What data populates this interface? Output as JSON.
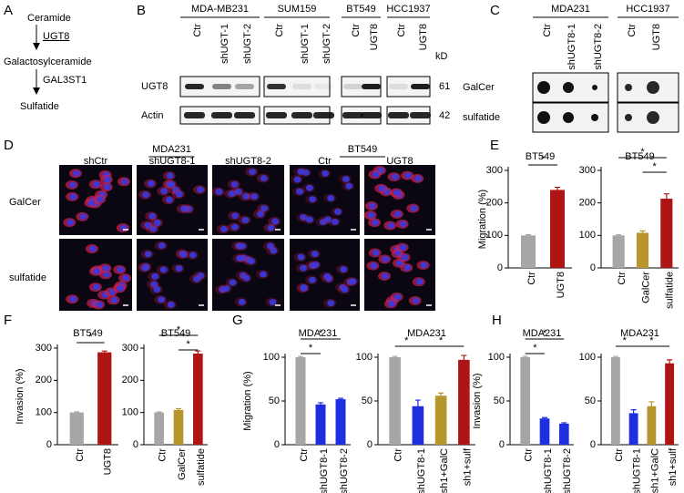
{
  "panels": {
    "A": {
      "letter": "A",
      "steps": [
        "Ceramide",
        "UGT8",
        "Galactosylceramide",
        "GAL3ST1",
        "Sulfatide"
      ]
    },
    "B": {
      "letter": "B",
      "groups": [
        {
          "name": "MDA-MB231",
          "lanes": [
            "Ctr",
            "shUGT-1",
            "shUGT-2"
          ]
        },
        {
          "name": "SUM159",
          "lanes": [
            "Ctr",
            "shUGT-1",
            "shUGT-2"
          ]
        },
        {
          "name": "BT549",
          "lanes": [
            "Ctr",
            "UGT8"
          ]
        },
        {
          "name": "HCC1937",
          "lanes": [
            "Ctr",
            "UGT8"
          ]
        }
      ],
      "rows": [
        "UGT8",
        "Actin"
      ],
      "unit": "kD",
      "sizes": [
        "61",
        "42"
      ]
    },
    "C": {
      "letter": "C",
      "groups": [
        {
          "name": "MDA231",
          "lanes": [
            "Ctr",
            "shUGT8-1",
            "shUGT8-2"
          ]
        },
        {
          "name": "HCC1937",
          "lanes": [
            "Ctr",
            "UGT8"
          ]
        }
      ],
      "rows": [
        "GalCer",
        "sulfatide"
      ]
    },
    "D": {
      "letter": "D",
      "groups": [
        {
          "name": "MDA231",
          "lanes": [
            "shCtr",
            "shUGT8-1",
            "shUGT8-2"
          ]
        },
        {
          "name": "BT549",
          "lanes": [
            "Ctr",
            "UGT8"
          ]
        }
      ],
      "rows": [
        "GalCer",
        "sulfatide"
      ]
    }
  },
  "chart_data": [
    {
      "type": "bar",
      "panel": "E",
      "title": "BT549",
      "y_label": "Migration (%)",
      "categories": [
        "Ctr",
        "UGT8"
      ],
      "values": [
        100,
        240
      ],
      "errors": [
        2,
        8
      ],
      "colors": [
        "#a6a6a6",
        "#b01515"
      ],
      "ylim": [
        0,
        300
      ],
      "yticks": [
        0,
        100,
        200,
        300
      ],
      "annotations": [
        {
          "text": "*",
          "from": 0,
          "to": 1
        }
      ]
    },
    {
      "type": "bar",
      "title": "BT549",
      "categories": [
        "Ctr",
        "GalCer",
        "sulfatide"
      ],
      "values": [
        100,
        108,
        213
      ],
      "errors": [
        2,
        6,
        15
      ],
      "colors": [
        "#a6a6a6",
        "#b8962e",
        "#b01515"
      ],
      "ylim": [
        0,
        300
      ],
      "yticks": [
        0,
        100,
        200,
        300
      ],
      "annotations": [
        {
          "text": "*",
          "from": 0,
          "to": 2
        },
        {
          "text": "*",
          "from": 1,
          "to": 2
        }
      ]
    },
    {
      "type": "bar",
      "panel": "F",
      "title": "BT549",
      "y_label": "Invasion (%)",
      "categories": [
        "Ctr",
        "UGT8"
      ],
      "values": [
        100,
        287
      ],
      "errors": [
        2,
        4
      ],
      "colors": [
        "#a6a6a6",
        "#b01515"
      ],
      "ylim": [
        0,
        300
      ],
      "yticks": [
        0,
        100,
        200,
        300
      ],
      "annotations": [
        {
          "text": "*",
          "from": 0,
          "to": 1
        }
      ]
    },
    {
      "type": "bar",
      "title": "BT549",
      "categories": [
        "Ctr",
        "GalCer",
        "sulfatide"
      ],
      "values": [
        100,
        108,
        283
      ],
      "errors": [
        2,
        4,
        8
      ],
      "colors": [
        "#a6a6a6",
        "#b8962e",
        "#b01515"
      ],
      "ylim": [
        0,
        300
      ],
      "yticks": [
        0,
        100,
        200,
        300
      ],
      "annotations": [
        {
          "text": "*",
          "from": 0,
          "to": 2
        },
        {
          "text": "*",
          "from": 1,
          "to": 2
        }
      ]
    },
    {
      "type": "bar",
      "panel": "G",
      "title": "MDA231",
      "y_label": "Migration (%)",
      "categories": [
        "Ctr",
        "shUGT8-1",
        "shUGT8-2"
      ],
      "values": [
        100,
        46,
        52
      ],
      "errors": [
        1,
        2,
        1
      ],
      "colors": [
        "#a6a6a6",
        "#1f2fe0",
        "#1f2fe0"
      ],
      "ylim": [
        0,
        100
      ],
      "yticks": [
        0,
        50,
        100
      ],
      "annotations": [
        {
          "text": "*",
          "from": 0,
          "to": 2
        },
        {
          "text": "*",
          "from": 0,
          "to": 1
        }
      ]
    },
    {
      "type": "bar",
      "title": "MDA231",
      "categories": [
        "Ctr",
        "shUGT8-1",
        "sh1+GalC",
        "sh1+sulf"
      ],
      "values": [
        100,
        44,
        56,
        97
      ],
      "errors": [
        1,
        7,
        3,
        5
      ],
      "colors": [
        "#a6a6a6",
        "#1f2fe0",
        "#b8962e",
        "#b01515"
      ],
      "ylim": [
        0,
        100
      ],
      "yticks": [
        0,
        50,
        100
      ],
      "annotations": [
        {
          "text": "*",
          "from": 0,
          "to": 1
        },
        {
          "text": "*",
          "from": 1,
          "to": 3
        }
      ]
    },
    {
      "type": "bar",
      "panel": "H",
      "title": "MDA231",
      "y_label": "Invasion (%)",
      "categories": [
        "Ctr",
        "shUGT8-1",
        "shUGT8-2"
      ],
      "values": [
        100,
        30,
        24
      ],
      "errors": [
        1,
        1,
        1
      ],
      "colors": [
        "#a6a6a6",
        "#1f2fe0",
        "#1f2fe0"
      ],
      "ylim": [
        0,
        100
      ],
      "yticks": [
        0,
        50,
        100
      ],
      "annotations": [
        {
          "text": "*",
          "from": 0,
          "to": 2
        },
        {
          "text": "*",
          "from": 0,
          "to": 1
        }
      ]
    },
    {
      "type": "bar",
      "title": "MDA231",
      "categories": [
        "Ctr",
        "shUGT8-1",
        "sh1+GalC",
        "sh1+sulf"
      ],
      "values": [
        100,
        36,
        44,
        93
      ],
      "errors": [
        1,
        4,
        5,
        4
      ],
      "colors": [
        "#a6a6a6",
        "#1f2fe0",
        "#b8962e",
        "#b01515"
      ],
      "ylim": [
        0,
        100
      ],
      "yticks": [
        0,
        50,
        100
      ],
      "annotations": [
        {
          "text": "*",
          "from": 0,
          "to": 1
        },
        {
          "text": "*",
          "from": 1,
          "to": 3
        }
      ]
    }
  ]
}
